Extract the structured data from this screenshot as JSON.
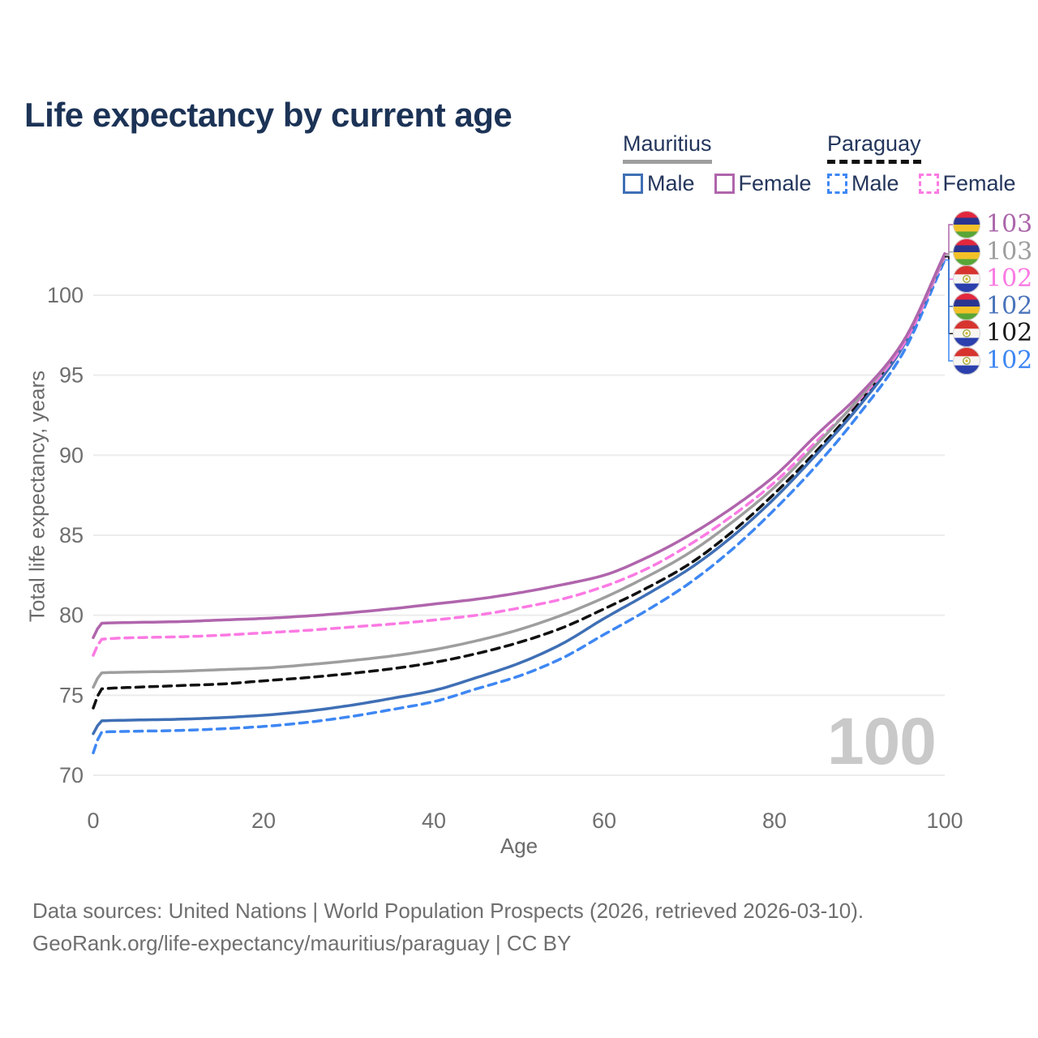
{
  "title": "Life expectancy by current age",
  "legend": {
    "groups": [
      {
        "country": "Mauritius",
        "line_style": "solid",
        "underline_color": "#9e9e9e",
        "items": [
          {
            "label": "Male",
            "color": "#3f6fb5"
          },
          {
            "label": "Female",
            "color": "#b065ac"
          }
        ]
      },
      {
        "country": "Paraguay",
        "line_style": "dashed",
        "underline_color": "#111111",
        "items": [
          {
            "label": "Male",
            "color": "#3e87f3"
          },
          {
            "label": "Female",
            "color": "#fb7ae3"
          }
        ]
      }
    ]
  },
  "chart_data": {
    "type": "line",
    "title": "Life expectancy by current age",
    "xlabel": "Age",
    "ylabel": "Total life expectancy, years",
    "xlim": [
      0,
      100
    ],
    "ylim": [
      70,
      103
    ],
    "x_ticks": [
      0,
      20,
      40,
      60,
      80,
      100
    ],
    "y_ticks": [
      70,
      75,
      80,
      85,
      90,
      95,
      100
    ],
    "grid": "horizontal",
    "ages": [
      0,
      1,
      5,
      10,
      15,
      20,
      25,
      30,
      35,
      40,
      45,
      50,
      55,
      60,
      65,
      70,
      75,
      80,
      85,
      90,
      95,
      100
    ],
    "series": [
      {
        "key": "mauritius-female",
        "name": "Mauritius Female",
        "country": "mauritius",
        "sex": "Female",
        "color": "#b065ac",
        "dashed": false,
        "end_label": "103",
        "label_color": "#ab67ab",
        "values": [
          78.6,
          79.5,
          79.55,
          79.6,
          79.7,
          79.8,
          79.95,
          80.15,
          80.4,
          80.7,
          81.0,
          81.4,
          81.9,
          82.5,
          83.6,
          85.0,
          86.7,
          88.7,
          91.3,
          93.8,
          97.0,
          102.6
        ]
      },
      {
        "key": "mauritius-total",
        "name": "Mauritius (both sexes)",
        "country": "mauritius",
        "sex": "Both",
        "color": "#9e9e9e",
        "dashed": false,
        "end_label": "103",
        "label_color": "#9e9e9e",
        "values": [
          75.5,
          76.4,
          76.45,
          76.5,
          76.6,
          76.7,
          76.9,
          77.15,
          77.45,
          77.85,
          78.4,
          79.1,
          80.0,
          81.1,
          82.4,
          83.9,
          85.8,
          88.0,
          90.7,
          93.6,
          97.0,
          102.5
        ]
      },
      {
        "key": "paraguay-female",
        "name": "Paraguay Female",
        "country": "paraguay",
        "sex": "Female",
        "color": "#fb7ae3",
        "dashed": true,
        "end_label": "102",
        "label_color": "#fb7ae3",
        "values": [
          77.5,
          78.5,
          78.6,
          78.65,
          78.75,
          78.9,
          79.05,
          79.25,
          79.45,
          79.7,
          80.0,
          80.45,
          81.0,
          81.8,
          82.9,
          84.4,
          86.2,
          88.3,
          90.9,
          93.5,
          96.8,
          102.4
        ]
      },
      {
        "key": "mauritius-male",
        "name": "Mauritius Male",
        "country": "mauritius",
        "sex": "Male",
        "color": "#3f6fb5",
        "dashed": false,
        "end_label": "102",
        "label_color": "#4a74ba",
        "values": [
          72.6,
          73.4,
          73.45,
          73.5,
          73.6,
          73.75,
          74.0,
          74.35,
          74.8,
          75.3,
          76.1,
          77.0,
          78.2,
          79.8,
          81.3,
          82.9,
          84.9,
          87.3,
          90.1,
          93.1,
          96.7,
          102.4
        ]
      },
      {
        "key": "paraguay-total",
        "name": "Paraguay (both sexes)",
        "country": "paraguay",
        "sex": "Both",
        "color": "#111111",
        "dashed": true,
        "end_label": "102",
        "label_color": "#1a1a1a",
        "values": [
          74.2,
          75.4,
          75.5,
          75.6,
          75.7,
          75.9,
          76.1,
          76.35,
          76.65,
          77.05,
          77.6,
          78.3,
          79.2,
          80.4,
          81.7,
          83.2,
          85.2,
          87.6,
          90.3,
          93.3,
          96.8,
          102.4
        ]
      },
      {
        "key": "paraguay-male",
        "name": "Paraguay Male",
        "country": "paraguay",
        "sex": "Male",
        "color": "#3e87f3",
        "dashed": true,
        "end_label": "102",
        "label_color": "#3e87f3",
        "values": [
          71.4,
          72.7,
          72.75,
          72.8,
          72.9,
          73.05,
          73.3,
          73.65,
          74.1,
          74.6,
          75.4,
          76.2,
          77.3,
          78.8,
          80.3,
          82.0,
          84.1,
          86.6,
          89.4,
          92.6,
          96.3,
          102.2
        ]
      }
    ]
  },
  "flags": {
    "mauritius": {
      "stripes": [
        "#e3273d",
        "#2a3590",
        "#f2c129",
        "#58a636"
      ]
    },
    "paraguay": {
      "stripes": [
        "#d7342f",
        "#f7f5f2",
        "#2b3fad"
      ],
      "emblem_ring": "#a3a53a",
      "emblem_center": "#d8b62e"
    }
  },
  "watermark": "100",
  "footer": {
    "line1": "Data sources: United Nations | World Population Prospects (2026, retrieved 2026-03-10).",
    "line2": "GeoRank.org/life-expectancy/mauritius/paraguay | CC BY"
  }
}
